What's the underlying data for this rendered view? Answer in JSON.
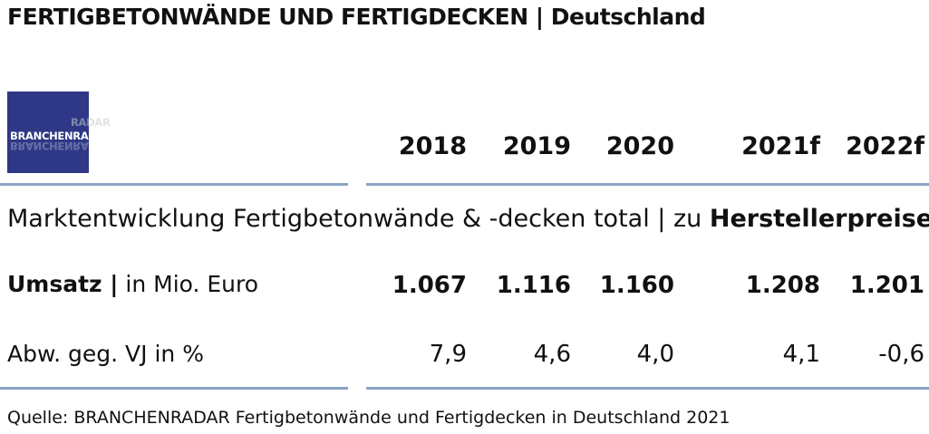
{
  "title": "FERTIGBETONWÄNDE UND FERTIGDECKEN | Deutschland",
  "logo": {
    "brand": "BRANCHEN",
    "brand2": "RADAR",
    "ghost": "RADAR"
  },
  "years": [
    "2018",
    "2019",
    "2020",
    "2021f",
    "2022f"
  ],
  "section": {
    "heading_prefix": "Marktentwicklung Fertigbetonwände & -decken total | zu ",
    "heading_bold": "Herstellerpreisen"
  },
  "rows": [
    {
      "label_bold": "Umsatz |",
      "label_rest": " in Mio. Euro",
      "values": [
        "1.067",
        "1.116",
        "1.160",
        "1.208",
        "1.201"
      ]
    },
    {
      "label": "Abw. geg. VJ in %",
      "values": [
        "7,9",
        "4,6",
        "4,0",
        "4,1",
        "-0,6"
      ]
    }
  ],
  "source": "Quelle: BRANCHENRADAR Fertigbetonwände und Fertigdecken in Deutschland 2021"
}
